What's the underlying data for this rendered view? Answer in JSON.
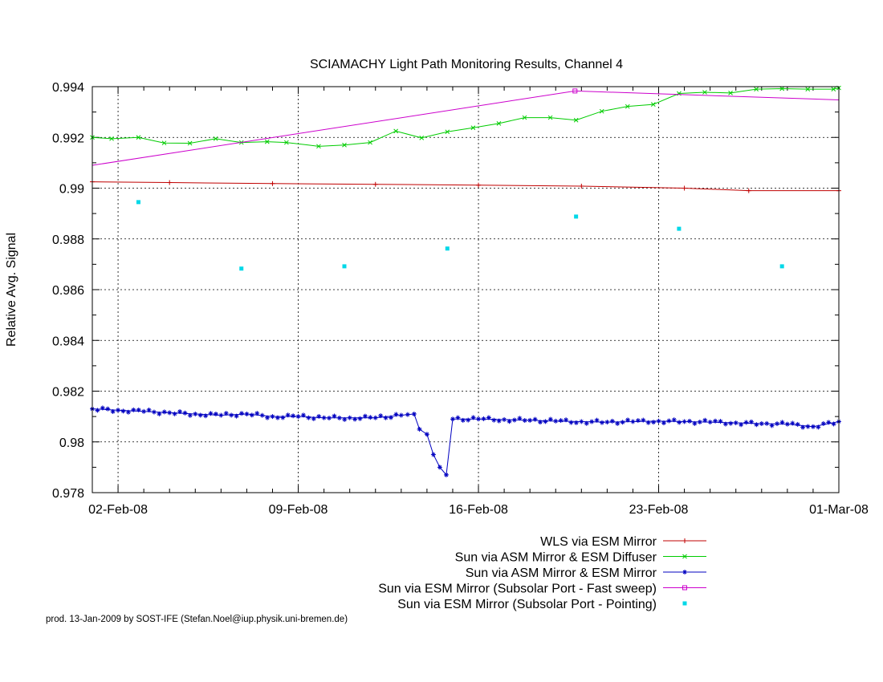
{
  "chart_data": {
    "type": "line",
    "title": "SCIAMACHY Light Path Monitoring Results, Channel 4",
    "ylabel": "Relative Avg. Signal",
    "xlabel": "",
    "x_axis": "date",
    "xlim": [
      "2008-02-01T00:00",
      "2008-03-01T00:00"
    ],
    "ylim": [
      0.978,
      0.994
    ],
    "yticks": [
      0.978,
      0.98,
      0.982,
      0.984,
      0.986,
      0.988,
      0.99,
      0.992,
      0.994
    ],
    "ytick_labels": [
      "0.978",
      "0.98",
      "0.982",
      "0.984",
      "0.986",
      "0.988",
      "0.99",
      "0.992",
      "0.994"
    ],
    "xticks": [
      "2008-02-02T00:00",
      "2008-02-09T00:00",
      "2008-02-16T00:00",
      "2008-02-23T00:00",
      "2008-03-01T00:00"
    ],
    "xtick_labels": [
      "02-Feb-08",
      "09-Feb-08",
      "16-Feb-08",
      "23-Feb-08",
      "01-Mar-08"
    ],
    "grid": true,
    "legend_position": "below-right",
    "footer": "prod. 13-Jan-2009 by SOST-IFE (Stefan.Noel@iup.physik.uni-bremen.de)",
    "series": [
      {
        "name": "WLS via ESM Mirror",
        "color": "#c00000",
        "style": "line-plus",
        "x": [
          "2008-02-01T00:00",
          "2008-02-04T00:00",
          "2008-02-08T00:00",
          "2008-02-12T00:00",
          "2008-02-16T00:00",
          "2008-02-20T00:00",
          "2008-02-24T00:00",
          "2008-02-26T12:00",
          "2008-03-01T00:00"
        ],
        "y": [
          0.99025,
          0.99022,
          0.99018,
          0.99015,
          0.99012,
          0.99008,
          0.99,
          0.9899,
          0.9899
        ]
      },
      {
        "name": "Sun via ASM Mirror & ESM Diffuser",
        "color": "#00cc00",
        "style": "line-x",
        "x": [
          "2008-02-01T00:00",
          "2008-02-01T18:00",
          "2008-02-02T19:00",
          "2008-02-03T19:00",
          "2008-02-04T19:00",
          "2008-02-05T19:00",
          "2008-02-06T19:00",
          "2008-02-07T19:00",
          "2008-02-08T13:00",
          "2008-02-09T19:00",
          "2008-02-10T19:00",
          "2008-02-11T19:00",
          "2008-02-12T19:00",
          "2008-02-13T19:00",
          "2008-02-14T19:00",
          "2008-02-15T19:00",
          "2008-02-16T19:00",
          "2008-02-17T19:00",
          "2008-02-18T19:00",
          "2008-02-19T19:00",
          "2008-02-20T19:00",
          "2008-02-21T19:00",
          "2008-02-22T19:00",
          "2008-02-23T19:00",
          "2008-02-24T19:00",
          "2008-02-25T19:00",
          "2008-02-26T19:00",
          "2008-02-27T19:00",
          "2008-02-28T19:00",
          "2008-02-29T19:00",
          "2008-03-01T00:00"
        ],
        "y": [
          0.992,
          0.99195,
          0.992,
          0.99178,
          0.99177,
          0.99195,
          0.9918,
          0.99183,
          0.9918,
          0.99165,
          0.9917,
          0.9918,
          0.99225,
          0.99198,
          0.99222,
          0.99238,
          0.99255,
          0.99278,
          0.99278,
          0.99268,
          0.99303,
          0.99322,
          0.9933,
          0.99373,
          0.99378,
          0.99375,
          0.9939,
          0.99392,
          0.9939,
          0.9939,
          0.99395
        ]
      },
      {
        "name": "Sun via ASM Mirror & ESM Mirror",
        "color": "#0000c0",
        "style": "line-star",
        "x": [
          "2008-02-01T00:00",
          "2008-02-02T00:00",
          "2008-02-03T00:00",
          "2008-02-04T00:00",
          "2008-02-05T00:00",
          "2008-02-06T00:00",
          "2008-02-07T00:00",
          "2008-02-08T00:00",
          "2008-02-09T00:00",
          "2008-02-10T00:00",
          "2008-02-11T00:00",
          "2008-02-12T00:00",
          "2008-02-13T00:00",
          "2008-02-13T12:00",
          "2008-02-13T17:00",
          "2008-02-14T00:00",
          "2008-02-14T06:00",
          "2008-02-14T12:00",
          "2008-02-14T18:00",
          "2008-02-15T00:00",
          "2008-02-16T00:00",
          "2008-02-17T00:00",
          "2008-02-18T00:00",
          "2008-02-19T00:00",
          "2008-02-20T00:00",
          "2008-02-21T00:00",
          "2008-02-22T00:00",
          "2008-02-23T00:00",
          "2008-02-24T00:00",
          "2008-02-25T00:00",
          "2008-02-26T00:00",
          "2008-02-27T00:00",
          "2008-02-28T00:00",
          "2008-02-29T00:00",
          "2008-03-01T00:00"
        ],
        "y": [
          0.9813,
          0.98125,
          0.9812,
          0.98115,
          0.9811,
          0.98105,
          0.9811,
          0.981,
          0.981,
          0.98095,
          0.98095,
          0.98095,
          0.98105,
          0.9811,
          0.9805,
          0.9803,
          0.9795,
          0.979,
          0.9787,
          0.9809,
          0.9809,
          0.98088,
          0.98085,
          0.98082,
          0.9808,
          0.98078,
          0.9808,
          0.98082,
          0.9808,
          0.98078,
          0.98075,
          0.98072,
          0.9807,
          0.9806,
          0.9808
        ]
      },
      {
        "name": "Sun via ESM Mirror (Subsolar Port - Fast sweep)",
        "color": "#cc00cc",
        "style": "line-square",
        "x": [
          "2008-02-01T00:00",
          "2008-02-19T18:00",
          "2008-03-01T00:00"
        ],
        "y": [
          0.9909,
          0.99383,
          0.99348
        ],
        "marker_index": 1
      },
      {
        "name": "Sun via ESM Mirror (Subsolar Port - Pointing)",
        "color": "#00d8e8",
        "style": "points",
        "x": [
          "2008-02-02T19:00",
          "2008-02-06T19:00",
          "2008-02-10T19:00",
          "2008-02-14T19:00",
          "2008-02-19T19:00",
          "2008-02-23T19:00",
          "2008-02-27T19:00"
        ],
        "y": [
          0.98945,
          0.98683,
          0.98692,
          0.98762,
          0.98888,
          0.9884,
          0.98692
        ]
      }
    ]
  }
}
